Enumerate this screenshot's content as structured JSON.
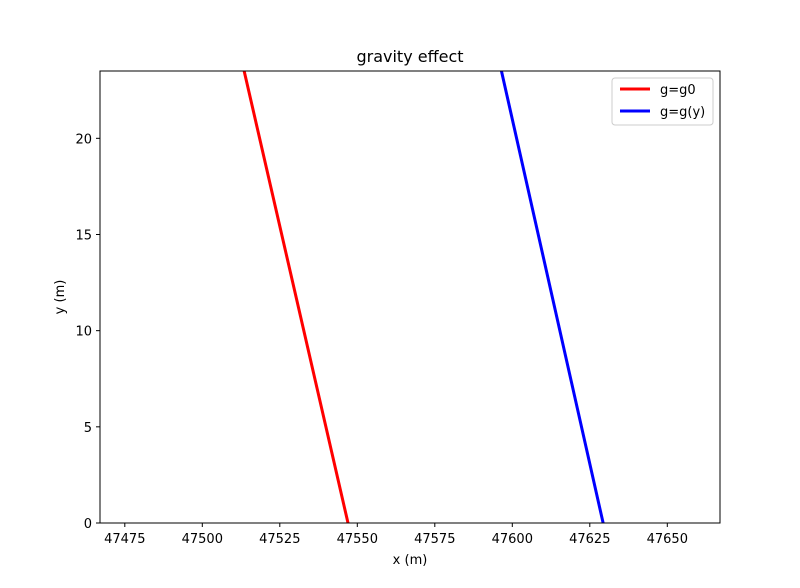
{
  "chart_data": {
    "type": "line",
    "title": "gravity effect",
    "xlabel": "x (m)",
    "ylabel": "y (m)",
    "xlim": [
      47467,
      47667
    ],
    "ylim": [
      0,
      23.5
    ],
    "xticks": [
      47475,
      47500,
      47525,
      47550,
      47575,
      47600,
      47625,
      47650
    ],
    "yticks": [
      0,
      5,
      10,
      15,
      20
    ],
    "grid": false,
    "legend_position": "top-right",
    "series": [
      {
        "name": "g=g0",
        "color": "#ff0000",
        "x": [
          47513.5,
          47547.0
        ],
        "y": [
          23.5,
          0
        ]
      },
      {
        "name": "g=g(y)",
        "color": "#0000ff",
        "x": [
          47596.5,
          47629.3
        ],
        "y": [
          23.5,
          0
        ]
      }
    ]
  }
}
